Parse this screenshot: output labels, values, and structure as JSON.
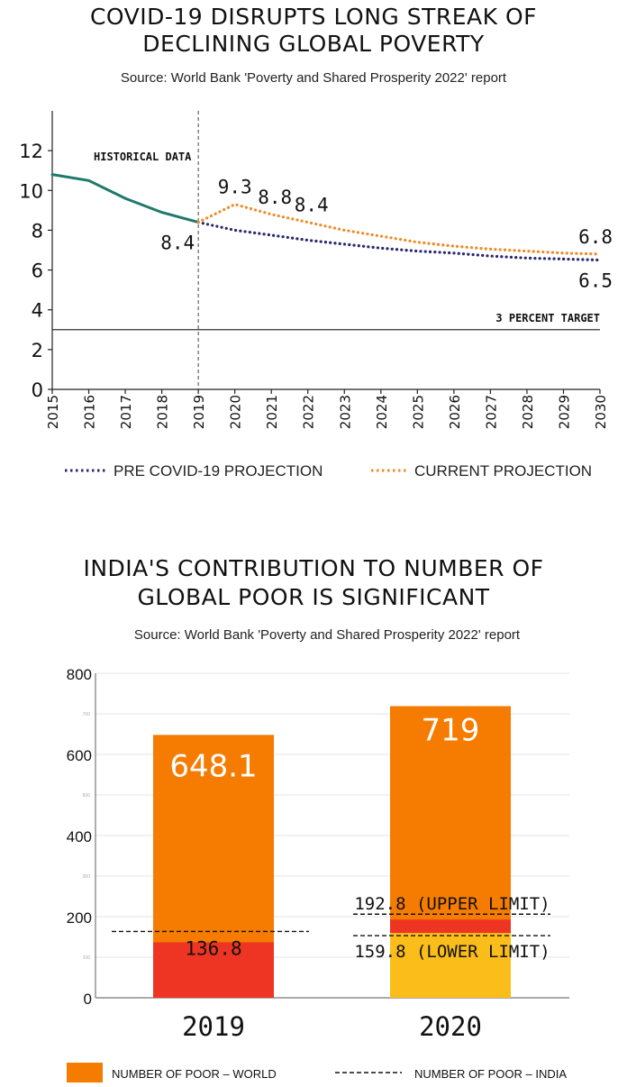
{
  "chart_data": [
    {
      "type": "line",
      "title_line1": "COVID-19 DISRUPTS LONG STREAK OF",
      "title_line2": "DECLINING GLOBAL POVERTY",
      "subtitle": "Source: World Bank 'Poverty and Shared Prosperity 2022' report",
      "x": [
        2015,
        2016,
        2017,
        2018,
        2019,
        2020,
        2021,
        2022,
        2023,
        2024,
        2025,
        2026,
        2027,
        2028,
        2029,
        2030
      ],
      "xticks": [
        "2015",
        "2016",
        "2017",
        "2018",
        "2019",
        "2020",
        "2021",
        "2022",
        "2023",
        "2024",
        "2025",
        "2026",
        "2027",
        "2028",
        "2029",
        "2030"
      ],
      "yticks": [
        "0",
        "2",
        "4",
        "6",
        "8",
        "10",
        "12"
      ],
      "ylim": [
        0,
        14
      ],
      "annotations": {
        "historical": "HISTORICAL DATA",
        "target": "3 PERCENT TARGET",
        "v2019": "8.4",
        "v2020": "9.3",
        "v2021": "8.8",
        "v2022": "8.4",
        "end_current": "6.8",
        "end_pre": "6.5"
      },
      "target_value": 3,
      "series": [
        {
          "name": "",
          "color": "#1e7a6b",
          "x": [
            2015,
            2016,
            2017,
            2018,
            2019
          ],
          "values": [
            10.8,
            10.5,
            9.6,
            8.9,
            8.4
          ]
        },
        {
          "name": "PRE COVID-19 PROJECTION",
          "color": "#2a2a6e",
          "x": [
            2019,
            2020,
            2021,
            2022,
            2023,
            2024,
            2025,
            2026,
            2027,
            2028,
            2029,
            2030
          ],
          "values": [
            8.4,
            8.0,
            7.75,
            7.5,
            7.3,
            7.1,
            6.95,
            6.85,
            6.7,
            6.6,
            6.55,
            6.5
          ]
        },
        {
          "name": "CURRENT PROJECTION",
          "color": "#f08a24",
          "x": [
            2019,
            2020,
            2021,
            2022,
            2023,
            2024,
            2025,
            2026,
            2027,
            2028,
            2029,
            2030
          ],
          "values": [
            8.4,
            9.3,
            8.8,
            8.4,
            8.0,
            7.7,
            7.4,
            7.2,
            7.05,
            6.95,
            6.85,
            6.8
          ]
        }
      ]
    },
    {
      "type": "bar",
      "title_line1": "INDIA'S CONTRIBUTION TO NUMBER OF",
      "title_line2": "GLOBAL POOR IS SIGNIFICANT",
      "subtitle": "Source: World Bank 'Poverty and Shared Prosperity 2022' report",
      "categories": [
        "2019",
        "2020"
      ],
      "world": [
        648.1,
        719
      ],
      "world_labels": [
        "648.1",
        "719"
      ],
      "india_2019": 136.8,
      "india_2019_label": "136.8",
      "india_2020_upper": 192.8,
      "india_2020_lower": 159.8,
      "upper_label": "192.8 (UPPER LIMIT)",
      "lower_label": "159.8 (LOWER LIMIT)",
      "ylim": [
        0,
        800
      ],
      "yticks_major": [
        "0",
        "200",
        "400",
        "600",
        "800"
      ],
      "yticks_minor": [
        "100",
        "300",
        "500",
        "700"
      ],
      "colors": {
        "world": "#f57c00",
        "india": "#ee3524",
        "lower_band": "#fbbd1a"
      },
      "legend": {
        "world": "NUMBER OF POOR – WORLD",
        "india": "NUMBER OF POOR – INDIA"
      }
    }
  ]
}
